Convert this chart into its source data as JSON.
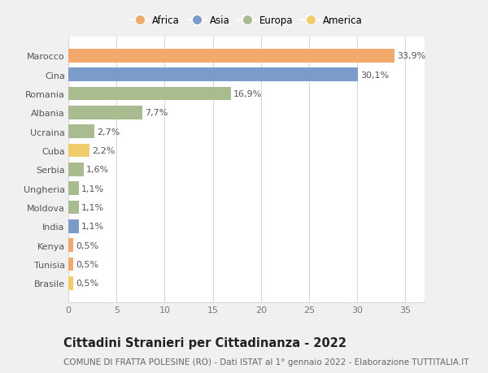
{
  "countries": [
    "Marocco",
    "Cina",
    "Romania",
    "Albania",
    "Ucraina",
    "Cuba",
    "Serbia",
    "Ungheria",
    "Moldova",
    "India",
    "Kenya",
    "Tunisia",
    "Brasile"
  ],
  "values": [
    33.9,
    30.1,
    16.9,
    7.7,
    2.7,
    2.2,
    1.6,
    1.1,
    1.1,
    1.1,
    0.5,
    0.5,
    0.5
  ],
  "labels": [
    "33,9%",
    "30,1%",
    "16,9%",
    "7,7%",
    "2,7%",
    "2,2%",
    "1,6%",
    "1,1%",
    "1,1%",
    "1,1%",
    "0,5%",
    "0,5%",
    "0,5%"
  ],
  "continents": [
    "Africa",
    "Asia",
    "Europa",
    "Europa",
    "Europa",
    "America",
    "Europa",
    "Europa",
    "Europa",
    "Asia",
    "Africa",
    "Africa",
    "America"
  ],
  "colors": {
    "Africa": "#F2A96B",
    "Asia": "#7B9CC8",
    "Europa": "#A9BC8F",
    "America": "#F0CC6A"
  },
  "legend_order": [
    "Africa",
    "Asia",
    "Europa",
    "America"
  ],
  "xlim": [
    0,
    37
  ],
  "xticks": [
    0,
    5,
    10,
    15,
    20,
    25,
    30,
    35
  ],
  "title": "Cittadini Stranieri per Cittadinanza - 2022",
  "subtitle": "COMUNE DI FRATTA POLESINE (RO) - Dati ISTAT al 1° gennaio 2022 - Elaborazione TUTTITALIA.IT",
  "fig_bg_color": "#f0f0f0",
  "plot_bg_color": "#ffffff",
  "grid_color": "#d8d8d8",
  "title_fontsize": 10.5,
  "subtitle_fontsize": 7.5,
  "label_fontsize": 8,
  "tick_fontsize": 8,
  "legend_fontsize": 8.5
}
